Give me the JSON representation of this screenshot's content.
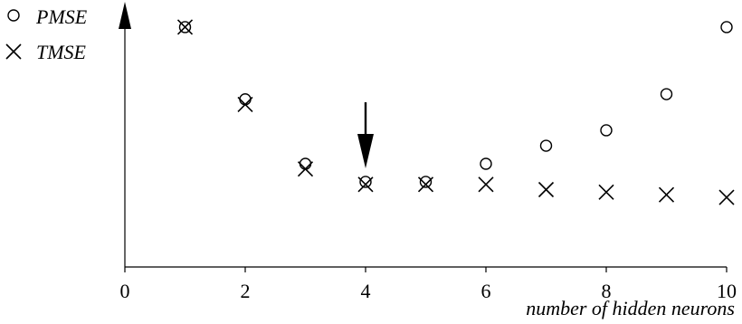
{
  "chart_data": {
    "type": "scatter",
    "title": "",
    "xlabel": "number of hidden neurons",
    "ylabel": "",
    "xlim": [
      0,
      10
    ],
    "ylim": [
      0,
      1
    ],
    "x_ticks": [
      "0",
      "2",
      "4",
      "6",
      "8",
      "10"
    ],
    "grid": false,
    "legend_position": "top-left",
    "series": [
      {
        "name": "PMSE",
        "marker": "circle",
        "x": [
          1,
          2,
          3,
          4,
          5,
          6,
          7,
          8,
          9,
          10
        ],
        "y": [
          0.93,
          0.65,
          0.4,
          0.33,
          0.33,
          0.4,
          0.47,
          0.53,
          0.67,
          0.93
        ]
      },
      {
        "name": "TMSE",
        "marker": "cross",
        "x": [
          1,
          2,
          3,
          4,
          5,
          6,
          7,
          8,
          9,
          10
        ],
        "y": [
          0.93,
          0.63,
          0.38,
          0.32,
          0.32,
          0.32,
          0.3,
          0.29,
          0.28,
          0.27
        ]
      }
    ],
    "annotations": [
      {
        "type": "arrow",
        "x": 4,
        "label": ""
      }
    ]
  }
}
